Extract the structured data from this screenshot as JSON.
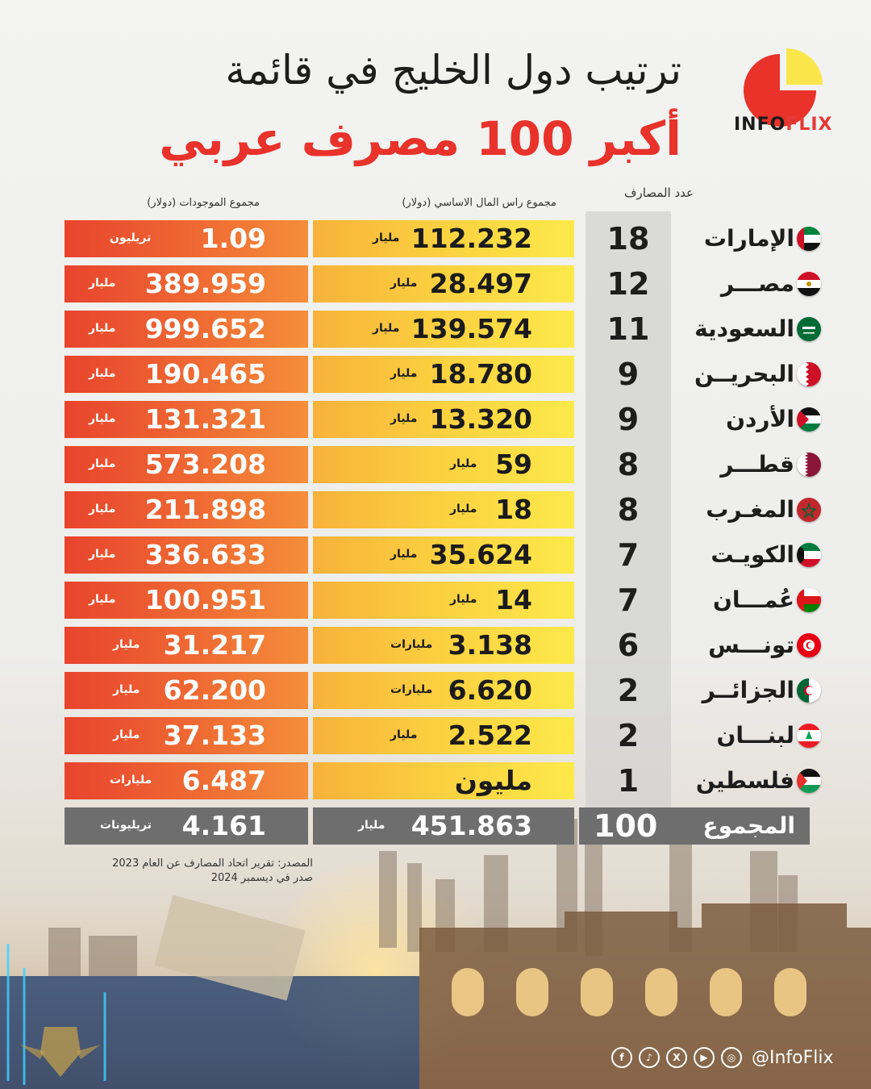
{
  "header": {
    "title_line1": "ترتيب دول الخليج في قائمة",
    "title_line2": "أكبر 100 مصرف عربي",
    "brand_prefix": "INFO",
    "brand_suffix": "FLIX"
  },
  "columns": {
    "count": "عدد المصارف",
    "capital": "مجموع راس المال الاساسي (دولار)",
    "assets": "مجموع الموجودات (دولار)"
  },
  "rows": [
    {
      "country": "الإمارات",
      "flag": "uae-flag-icon",
      "count": "18",
      "capital": "112.232",
      "capital_unit": "مليار",
      "assets": "1.09",
      "assets_unit": "تريليون"
    },
    {
      "country": "مصـــر",
      "flag": "egypt-flag-icon",
      "count": "12",
      "capital": "28.497",
      "capital_unit": "مليار",
      "assets": "389.959",
      "assets_unit": "مليار"
    },
    {
      "country": "السعودية",
      "flag": "saudi-flag-icon",
      "count": "11",
      "capital": "139.574",
      "capital_unit": "مليار",
      "assets": "999.652",
      "assets_unit": "مليار"
    },
    {
      "country": "البحريــن",
      "flag": "bahrain-flag-icon",
      "count": "9",
      "capital": "18.780",
      "capital_unit": "مليار",
      "assets": "190.465",
      "assets_unit": "مليار"
    },
    {
      "country": "الأردن",
      "flag": "jordan-flag-icon",
      "count": "9",
      "capital": "13.320",
      "capital_unit": "مليار",
      "assets": "131.321",
      "assets_unit": "مليار"
    },
    {
      "country": "قطـــر",
      "flag": "qatar-flag-icon",
      "count": "8",
      "capital": "59",
      "capital_unit": "مليار",
      "assets": "573.208",
      "assets_unit": "مليار"
    },
    {
      "country": "المغـرب",
      "flag": "morocco-flag-icon",
      "count": "8",
      "capital": "18",
      "capital_unit": "مليار",
      "assets": "211.898",
      "assets_unit": "مليار"
    },
    {
      "country": "الكويـت",
      "flag": "kuwait-flag-icon",
      "count": "7",
      "capital": "35.624",
      "capital_unit": "مليار",
      "assets": "336.633",
      "assets_unit": "مليار"
    },
    {
      "country": "عُمـــان",
      "flag": "oman-flag-icon",
      "count": "7",
      "capital": "14",
      "capital_unit": "مليار",
      "assets": "100.951",
      "assets_unit": "مليار"
    },
    {
      "country": "تونـــس",
      "flag": "tunisia-flag-icon",
      "count": "6",
      "capital": "3.138",
      "capital_unit": "مليارات",
      "assets": "31.217",
      "assets_unit": "مليار"
    },
    {
      "country": "الجزائــر",
      "flag": "algeria-flag-icon",
      "count": "2",
      "capital": "6.620",
      "capital_unit": "مليارات",
      "assets": "62.200",
      "assets_unit": "مليار"
    },
    {
      "country": "لبنـــان",
      "flag": "lebanon-flag-icon",
      "count": "2",
      "capital": "2.522",
      "capital_unit": "مليار",
      "assets": "37.133",
      "assets_unit": "مليار"
    },
    {
      "country": "فلسطين",
      "flag": "palestine-flag-icon",
      "count": "1",
      "capital": "مليون",
      "capital_unit": "",
      "assets": "6.487",
      "assets_unit": "مليارات"
    }
  ],
  "total": {
    "label": "المجموع",
    "count": "100",
    "capital": "451.863",
    "capital_unit": "مليار",
    "assets": "4.161",
    "assets_unit": "تريليونات"
  },
  "source": {
    "line1": "المصدر: تقرير اتحاد المصارف عن العام 2023",
    "line2": "صدر في ديسمبر 2024"
  },
  "social": {
    "handle": "@InfoFlix",
    "icons": [
      "facebook-icon",
      "tiktok-icon",
      "x-icon",
      "youtube-icon",
      "instagram-icon"
    ]
  },
  "colors": {
    "accent_red": "#e8322a",
    "assets_bar": "#ef6a33",
    "capital_bar": "#fbd140",
    "total_bar": "#6e6e6e"
  }
}
